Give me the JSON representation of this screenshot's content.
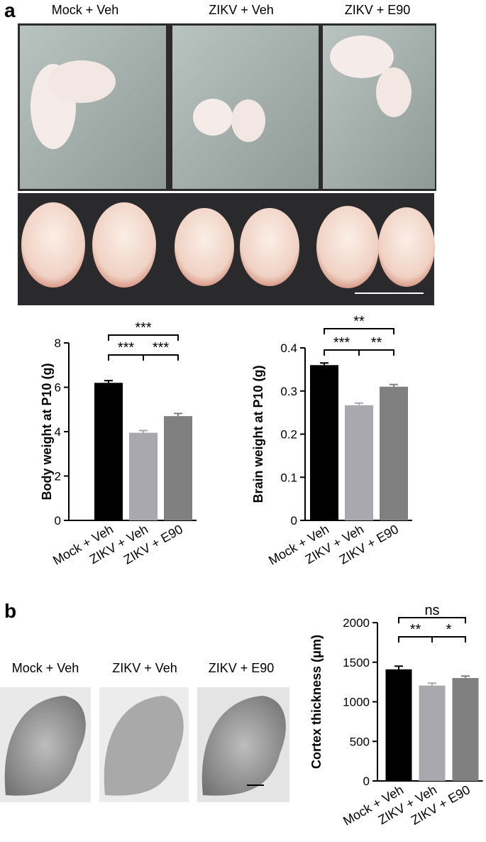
{
  "panel_a": {
    "label": "a",
    "photo_labels": [
      "Mock + Veh",
      "ZIKV + Veh",
      "ZIKV + E90"
    ]
  },
  "panel_b": {
    "label": "b",
    "photo_labels": [
      "Mock + Veh",
      "ZIKV + Veh",
      "ZIKV + E90"
    ]
  },
  "chart_data": [
    {
      "type": "bar",
      "ylabel": "Body weight at P10 (g)",
      "categories": [
        "Mock + Veh",
        "ZIKV + Veh",
        "ZIKV + E90"
      ],
      "values": [
        6.2,
        3.95,
        4.7
      ],
      "errors": [
        0.1,
        0.1,
        0.12
      ],
      "colors": [
        "#000000",
        "#a8a8ae",
        "#808080"
      ],
      "ylim": [
        0,
        8
      ],
      "yticks": [
        0,
        2,
        4,
        6,
        8
      ],
      "significance": [
        {
          "between": [
            0,
            2
          ],
          "label": "***"
        },
        {
          "between": [
            0,
            1
          ],
          "label": "***"
        },
        {
          "between": [
            1,
            2
          ],
          "label": "***"
        }
      ]
    },
    {
      "type": "bar",
      "ylabel": "Brain weight at P10 (g)",
      "categories": [
        "Mock + Veh",
        "ZIKV + Veh",
        "ZIKV + E90"
      ],
      "values": [
        0.36,
        0.267,
        0.31
      ],
      "errors": [
        0.005,
        0.005,
        0.005
      ],
      "colors": [
        "#000000",
        "#a8a8ae",
        "#808080"
      ],
      "ylim": [
        0,
        0.4
      ],
      "yticks": [
        0,
        0.1,
        0.2,
        0.3,
        0.4
      ],
      "significance": [
        {
          "between": [
            0,
            2
          ],
          "label": "**"
        },
        {
          "between": [
            0,
            1
          ],
          "label": "***"
        },
        {
          "between": [
            1,
            2
          ],
          "label": "**"
        }
      ]
    },
    {
      "type": "bar",
      "ylabel": "Cortex thickness (μm)",
      "categories": [
        "Mock + Veh",
        "ZIKV + Veh",
        "ZIKV + E90"
      ],
      "values": [
        1410,
        1205,
        1300
      ],
      "errors": [
        40,
        30,
        25
      ],
      "colors": [
        "#000000",
        "#a8a8ae",
        "#808080"
      ],
      "ylim": [
        0,
        2000
      ],
      "yticks": [
        0,
        500,
        1000,
        1500,
        2000
      ],
      "significance": [
        {
          "between": [
            0,
            2
          ],
          "label": "ns"
        },
        {
          "between": [
            0,
            1
          ],
          "label": "**"
        },
        {
          "between": [
            1,
            2
          ],
          "label": "*"
        }
      ]
    }
  ]
}
